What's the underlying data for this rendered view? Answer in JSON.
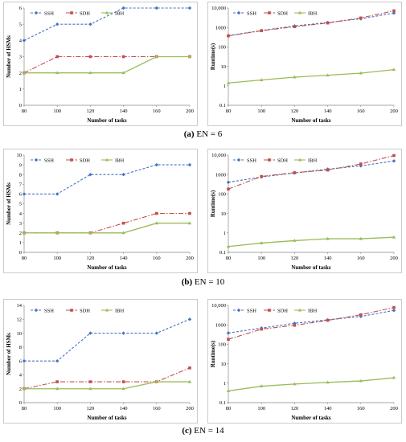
{
  "captions": [
    {
      "prefix": "(a)",
      "text": "EN = 6"
    },
    {
      "prefix": "(b)",
      "text": "EN = 10"
    },
    {
      "prefix": "(c)",
      "text": "EN = 14"
    }
  ],
  "colors": {
    "SSH": "#4472c4",
    "SDH": "#c0504d",
    "IBH": "#9bbb59",
    "frame": "#bfbfbf"
  },
  "chart_data": [
    {
      "type": "line",
      "categories": [
        "80",
        "100",
        "120",
        "140",
        "160",
        "200"
      ],
      "xlabel": "Number of tasks",
      "ylabel": "Number of HSMs",
      "ylim": [
        0,
        6
      ],
      "yticks": [
        "0",
        "1",
        "2",
        "3",
        "4",
        "5",
        "6"
      ],
      "legend": "top-left",
      "series": [
        {
          "name": "SSH",
          "values": [
            4,
            5,
            5,
            6,
            6,
            6
          ]
        },
        {
          "name": "SDH",
          "values": [
            2,
            3,
            3,
            3,
            3,
            3
          ]
        },
        {
          "name": "IBH",
          "values": [
            2,
            2,
            2,
            2,
            3,
            3
          ]
        }
      ]
    },
    {
      "type": "line",
      "scale": "log",
      "categories": [
        "80",
        "100",
        "120",
        "140",
        "160",
        "200"
      ],
      "xlabel": "Number of tasks",
      "ylabel": "Runtime(s)",
      "ylim": [
        0.1,
        10000
      ],
      "yticks": [
        "0.1",
        "1",
        "10",
        "100",
        "1000",
        "10,000"
      ],
      "legend": "top-left",
      "series": [
        {
          "name": "SSH",
          "values": [
            380,
            700,
            1200,
            1800,
            2800,
            5500
          ]
        },
        {
          "name": "SDH",
          "values": [
            370,
            680,
            1100,
            1700,
            3100,
            7200
          ]
        },
        {
          "name": "IBH",
          "values": [
            1.4,
            2.0,
            2.8,
            3.5,
            4.5,
            6.8
          ]
        }
      ]
    },
    {
      "type": "line",
      "categories": [
        "80",
        "100",
        "120",
        "140",
        "160",
        "200"
      ],
      "xlabel": "Number of tasks",
      "ylabel": "Number of HSMs",
      "ylim": [
        0,
        10
      ],
      "yticks": [
        "0",
        "1",
        "2",
        "3",
        "4",
        "5",
        "6",
        "7",
        "8",
        "9",
        "10"
      ],
      "legend": "top-left",
      "series": [
        {
          "name": "SSH",
          "values": [
            6,
            6,
            8,
            8,
            9,
            9
          ]
        },
        {
          "name": "SDH",
          "values": [
            2,
            2,
            2,
            3,
            4,
            4
          ]
        },
        {
          "name": "IBH",
          "values": [
            2,
            2,
            2,
            2,
            3,
            3
          ]
        }
      ]
    },
    {
      "type": "line",
      "scale": "log",
      "categories": [
        "80",
        "100",
        "120",
        "140",
        "160",
        "200"
      ],
      "xlabel": "Number of tasks",
      "ylabel": "Runtime(s)",
      "ylim": [
        0.1,
        10000
      ],
      "yticks": [
        "0.1",
        "1",
        "10",
        "100",
        "1000",
        "10,000"
      ],
      "legend": "top-left",
      "series": [
        {
          "name": "SSH",
          "values": [
            400,
            750,
            1200,
            1900,
            2800,
            5000
          ]
        },
        {
          "name": "SDH",
          "values": [
            180,
            800,
            1250,
            1700,
            3500,
            9500
          ]
        },
        {
          "name": "IBH",
          "values": [
            0.2,
            0.3,
            0.4,
            0.5,
            0.5,
            0.6
          ]
        }
      ]
    },
    {
      "type": "line",
      "categories": [
        "80",
        "100",
        "120",
        "140",
        "160",
        "200"
      ],
      "xlabel": "Number of tasks",
      "ylabel": "Number of HSMs",
      "ylim": [
        0,
        14
      ],
      "yticks": [
        "0",
        "2",
        "4",
        "6",
        "8",
        "10",
        "12",
        "14"
      ],
      "legend": "top-left",
      "series": [
        {
          "name": "SSH",
          "values": [
            6,
            6,
            10,
            10,
            10,
            12
          ]
        },
        {
          "name": "SDH",
          "values": [
            2,
            3,
            3,
            3,
            3,
            5
          ]
        },
        {
          "name": "IBH",
          "values": [
            2,
            2,
            2,
            2,
            3,
            3
          ]
        }
      ]
    },
    {
      "type": "line",
      "scale": "log",
      "categories": [
        "80",
        "100",
        "120",
        "140",
        "160",
        "200"
      ],
      "xlabel": "Number of tasks",
      "ylabel": "Runtime(s)",
      "ylim": [
        0.1,
        10000
      ],
      "yticks": [
        "0.1",
        "1",
        "10",
        "100",
        "1000",
        "10,000"
      ],
      "legend": "top-left",
      "series": [
        {
          "name": "SSH",
          "values": [
            380,
            680,
            1200,
            1800,
            2700,
            5500
          ]
        },
        {
          "name": "SDH",
          "values": [
            180,
            600,
            950,
            1700,
            3300,
            7800
          ]
        },
        {
          "name": "IBH",
          "values": [
            0.4,
            0.7,
            0.9,
            1.1,
            1.3,
            1.9
          ]
        }
      ]
    }
  ]
}
